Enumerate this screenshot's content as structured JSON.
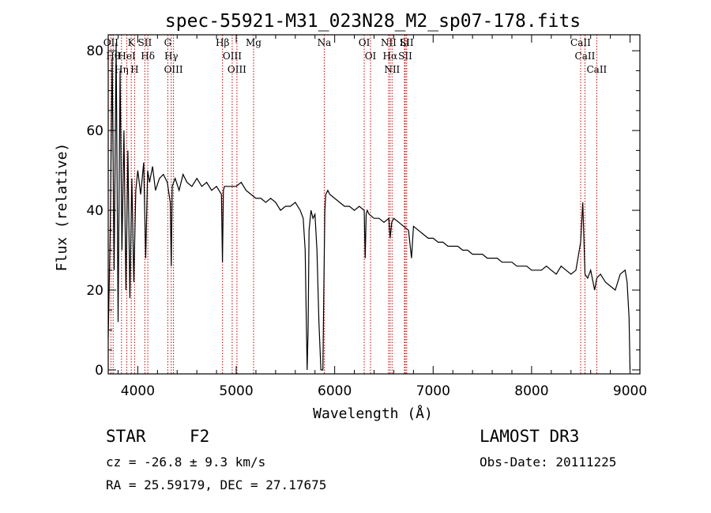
{
  "chart_data": {
    "type": "line",
    "title": "spec-55921-M31_023N28_M2_sp07-178.fits",
    "xlabel": "Wavelength (Å)",
    "ylabel": "Flux (relative)",
    "xlim": [
      3700,
      9100
    ],
    "ylim": [
      -1,
      84
    ],
    "xticks": [
      4000,
      5000,
      6000,
      7000,
      8000,
      9000
    ],
    "yticks": [
      0,
      20,
      40,
      60,
      80
    ],
    "series": [
      {
        "name": "spectrum",
        "x": [
          3700,
          3720,
          3740,
          3760,
          3780,
          3800,
          3820,
          3840,
          3860,
          3880,
          3900,
          3920,
          3940,
          3960,
          3980,
          4000,
          4030,
          4060,
          4080,
          4100,
          4120,
          4150,
          4180,
          4220,
          4260,
          4300,
          4330,
          4340,
          4350,
          4380,
          4420,
          4460,
          4500,
          4550,
          4600,
          4650,
          4700,
          4750,
          4800,
          4850,
          4860,
          4870,
          4880,
          4900,
          4950,
          5000,
          5050,
          5100,
          5150,
          5200,
          5250,
          5300,
          5350,
          5400,
          5450,
          5500,
          5550,
          5600,
          5650,
          5680,
          5700,
          5710,
          5720,
          5730,
          5740,
          5760,
          5780,
          5800,
          5820,
          5840,
          5860,
          5880,
          5890,
          5900,
          5910,
          5930,
          5950,
          6000,
          6050,
          6100,
          6150,
          6200,
          6250,
          6300,
          6310,
          6320,
          6330,
          6350,
          6400,
          6450,
          6500,
          6550,
          6563,
          6580,
          6600,
          6650,
          6700,
          6750,
          6780,
          6800,
          6850,
          6900,
          6950,
          7000,
          7050,
          7100,
          7150,
          7200,
          7250,
          7300,
          7350,
          7400,
          7450,
          7500,
          7550,
          7600,
          7650,
          7700,
          7750,
          7800,
          7850,
          7900,
          7950,
          8000,
          8050,
          8100,
          8150,
          8200,
          8250,
          8300,
          8350,
          8400,
          8450,
          8498,
          8520,
          8542,
          8570,
          8600,
          8640,
          8662,
          8700,
          8750,
          8800,
          8850,
          8900,
          8950,
          8970,
          8990,
          9000
        ],
        "y": [
          8,
          35,
          78,
          25,
          82,
          12,
          75,
          30,
          60,
          20,
          55,
          18,
          48,
          22,
          45,
          50,
          44,
          52,
          28,
          50,
          47,
          51,
          45,
          48,
          49,
          47,
          42,
          26,
          46,
          48,
          45,
          49,
          47,
          46,
          48,
          46,
          47,
          45,
          46,
          44,
          27,
          45,
          46,
          46,
          46,
          46,
          47,
          45,
          44,
          43,
          43,
          42,
          43,
          42,
          40,
          41,
          41,
          42,
          40,
          38,
          30,
          15,
          0,
          10,
          35,
          40,
          38,
          39,
          30,
          12,
          0,
          0,
          20,
          40,
          44,
          45,
          44,
          43,
          42,
          41,
          41,
          40,
          41,
          40,
          28,
          39,
          40,
          39,
          38,
          38,
          37,
          38,
          33,
          37,
          38,
          37,
          36,
          35,
          28,
          36,
          35,
          34,
          33,
          33,
          32,
          32,
          31,
          31,
          31,
          30,
          30,
          29,
          29,
          29,
          28,
          28,
          28,
          27,
          27,
          27,
          26,
          26,
          26,
          25,
          25,
          25,
          26,
          25,
          24,
          26,
          25,
          24,
          25,
          32,
          42,
          24,
          23,
          25,
          20,
          23,
          24,
          22,
          21,
          20,
          24,
          25,
          22,
          13,
          0
        ]
      }
    ],
    "lines": [
      {
        "name": "OII",
        "x": 3727
      },
      {
        "name": "Hθ",
        "x": 3750
      },
      {
        "name": "Hη",
        "x": 3835
      },
      {
        "name": "HeI",
        "x": 3889
      },
      {
        "name": "K",
        "x": 3934
      },
      {
        "name": "H",
        "x": 3968
      },
      {
        "name": "SII",
        "x": 4072
      },
      {
        "name": "Hδ",
        "x": 4102
      },
      {
        "name": "G",
        "x": 4305
      },
      {
        "name": "Hγ",
        "x": 4340
      },
      {
        "name": "OIII",
        "x": 4363
      },
      {
        "name": "Hβ",
        "x": 4861
      },
      {
        "name": "OIII",
        "x": 4959
      },
      {
        "name": "OIII",
        "x": 5007
      },
      {
        "name": "Mg",
        "x": 5176
      },
      {
        "name": "Na",
        "x": 5894
      },
      {
        "name": "OI",
        "x": 6300
      },
      {
        "name": "OI",
        "x": 6364
      },
      {
        "name": "NII",
        "x": 6548
      },
      {
        "name": "Hα",
        "x": 6563
      },
      {
        "name": "NII",
        "x": 6583
      },
      {
        "name": "Li",
        "x": 6708
      },
      {
        "name": "SII",
        "x": 6717
      },
      {
        "name": "SII",
        "x": 6731
      },
      {
        "name": "CaII",
        "x": 8498
      },
      {
        "name": "CaII",
        "x": 8542
      },
      {
        "name": "CaII",
        "x": 8662
      }
    ]
  },
  "info": {
    "class": "STAR",
    "subclass": "F2",
    "cz": "cz = -26.8 ± 9.3 km/s",
    "radec": "RA =  25.59179, DEC =  27.17675",
    "survey": "LAMOST DR3",
    "obsdate": "Obs-Date: 20111225"
  },
  "colors": {
    "line_marker": "#c00000",
    "spectrum": "#000000"
  }
}
